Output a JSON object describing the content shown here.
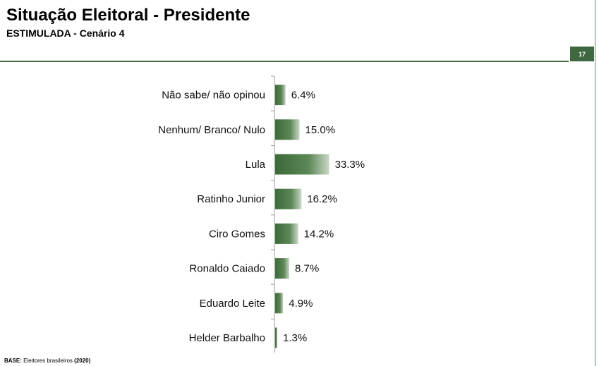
{
  "header": {
    "title": "Situação Eleitoral - Presidente",
    "subtitle": "ESTIMULADA - Cenário 4",
    "page_number": "17"
  },
  "footer": {
    "base_label": "BASE:",
    "base_text": "Eleitores brasileiros",
    "base_year": "(2020)"
  },
  "colors": {
    "bar_dark": "#3d6a3a",
    "bar_light": "#c9d8c4",
    "accent": "#3f6840"
  },
  "chart_data": {
    "type": "bar",
    "orientation": "horizontal",
    "categories": [
      "Não sabe/ não opinou",
      "Nenhum/ Branco/ Nulo",
      "Lula",
      "Ratinho Junior",
      "Ciro Gomes",
      "Ronaldo Caiado",
      "Eduardo Leite",
      "Helder Barbalho"
    ],
    "values": [
      6.4,
      15.0,
      33.3,
      16.2,
      14.2,
      8.7,
      4.9,
      1.3
    ],
    "value_labels": [
      "6.4%",
      "15.0%",
      "33.3%",
      "16.2%",
      "14.2%",
      "8.7%",
      "4.9%",
      "1.3%"
    ],
    "unit": "%",
    "xlim": [
      0,
      100
    ],
    "grid": false,
    "legend": "none"
  }
}
